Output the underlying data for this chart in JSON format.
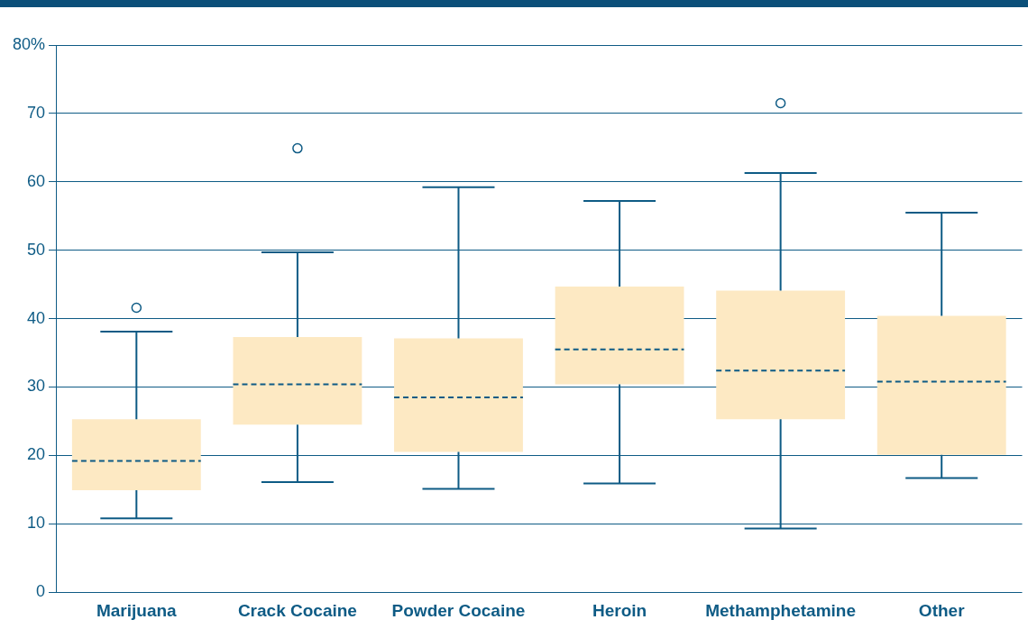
{
  "chart_data": {
    "type": "box",
    "categories": [
      "Marijuana",
      "Crack Cocaine",
      "Powder Cocaine",
      "Heroin",
      "Methamphetamine",
      "Other"
    ],
    "boxes": [
      {
        "low": 10.8,
        "q1": 14.9,
        "median": 19.2,
        "q3": 25.3,
        "high": 38.1,
        "outliers": [
          41.6
        ]
      },
      {
        "low": 16.1,
        "q1": 24.5,
        "median": 30.4,
        "q3": 37.3,
        "high": 49.7,
        "outliers": [
          64.9
        ]
      },
      {
        "low": 15.1,
        "q1": 20.5,
        "median": 28.5,
        "q3": 37.1,
        "high": 59.2
      },
      {
        "low": 15.9,
        "q1": 30.4,
        "median": 35.5,
        "q3": 44.7,
        "high": 57.2
      },
      {
        "low": 9.3,
        "q1": 25.3,
        "median": 32.4,
        "q3": 44.1,
        "high": 61.3,
        "outliers": [
          71.5
        ]
      },
      {
        "low": 16.7,
        "q1": 20.1,
        "median": 30.8,
        "q3": 40.4,
        "high": 55.5
      }
    ],
    "color": "#fde9c3",
    "ylim": [
      0,
      80
    ],
    "yticks": [
      0,
      10,
      20,
      30,
      40,
      50,
      60,
      70,
      {
        "value": 80,
        "label": "80%"
      }
    ],
    "grid": "y",
    "legend": false,
    "marker": "circle"
  }
}
